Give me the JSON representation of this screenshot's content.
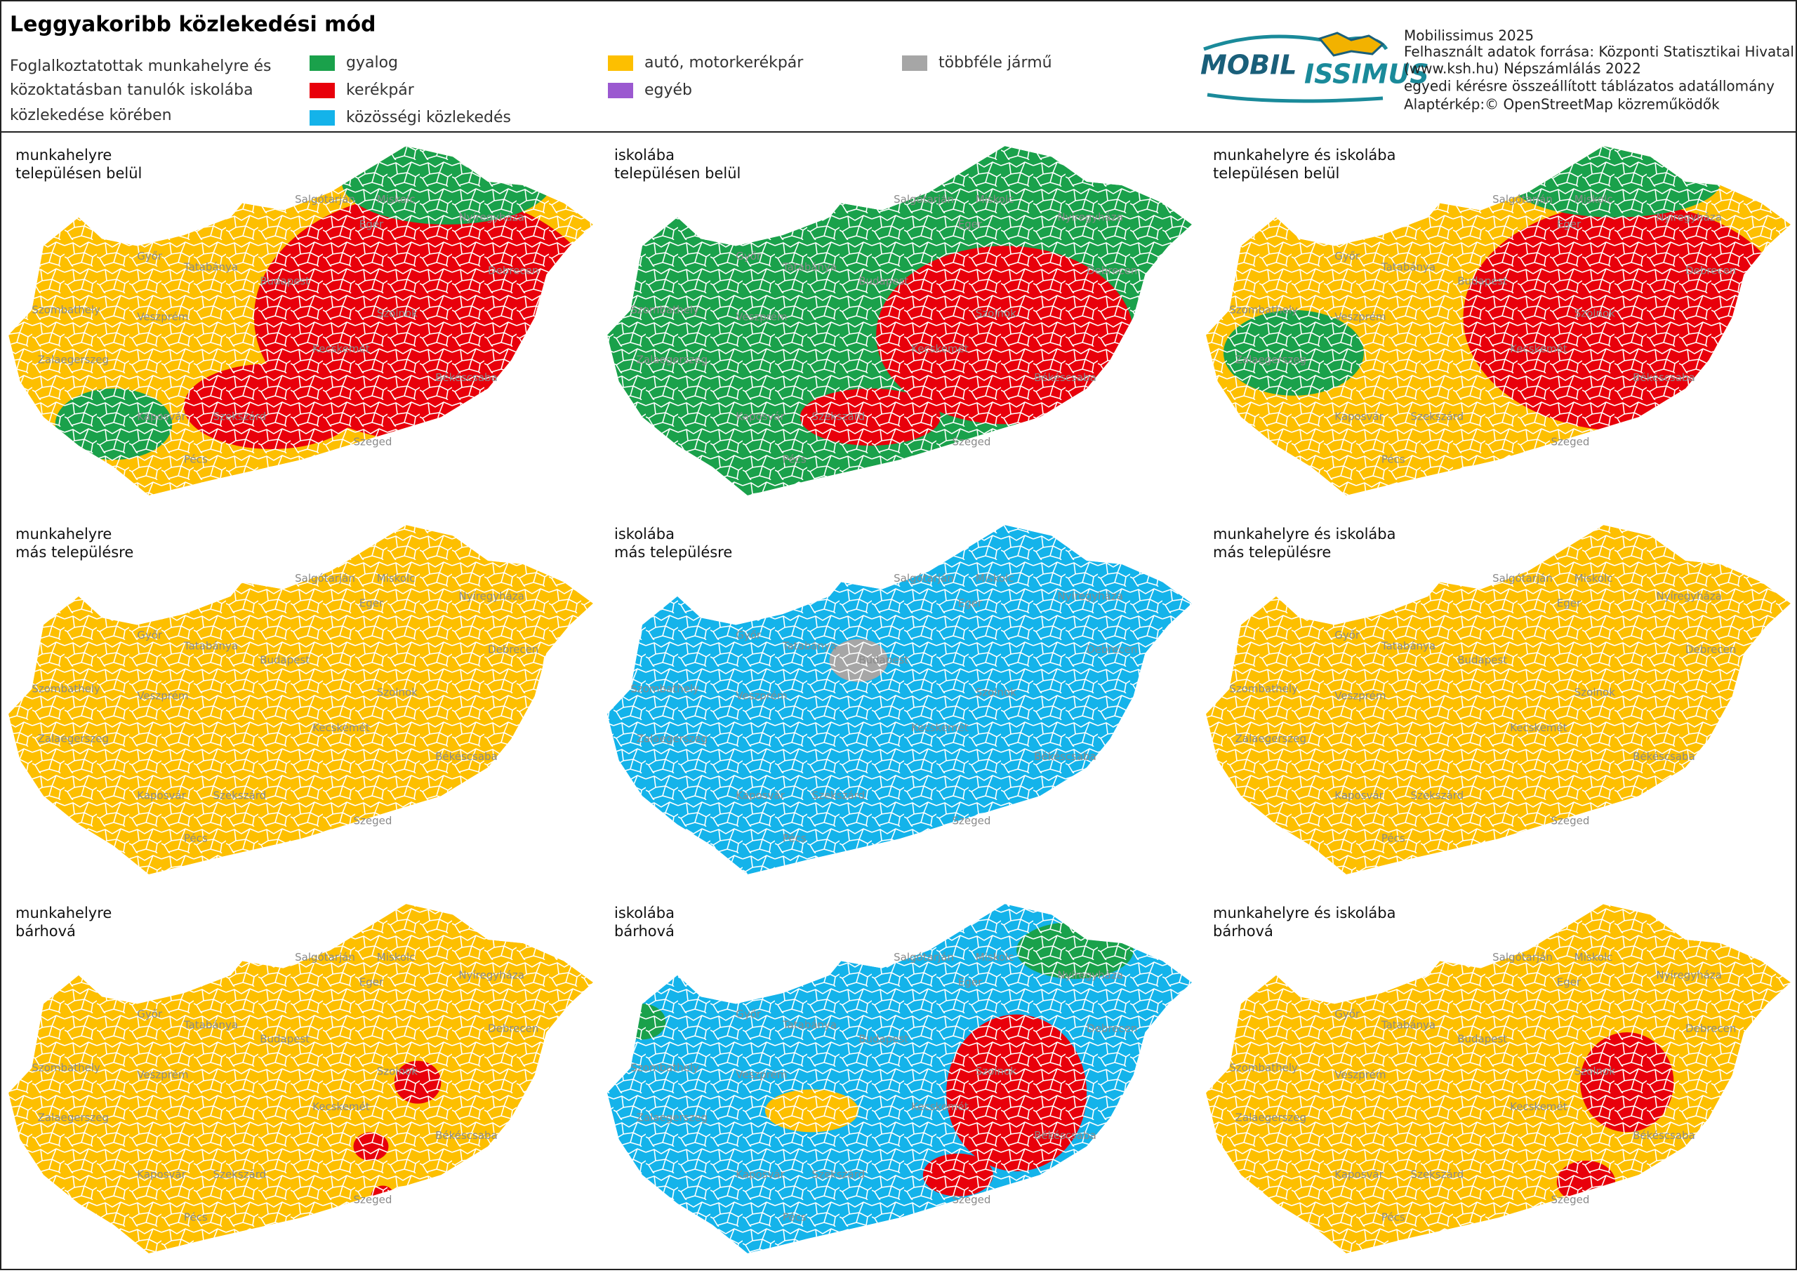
{
  "header": {
    "title": "Leggyakoribb közlekedési mód",
    "subtitle": [
      "Foglalkoztatottak munkahelyre és",
      "közoktatásban tanulók iskolába",
      "közlekedése körében"
    ]
  },
  "legend": [
    {
      "label": "gyalog",
      "color": "#1aa14b"
    },
    {
      "label": "kerékpár",
      "color": "#e8000b"
    },
    {
      "label": "közösségi közlekedés",
      "color": "#14b3ea"
    },
    {
      "label": "autó, motorkerékpár",
      "color": "#fdbf00"
    },
    {
      "label": "egyéb",
      "color": "#9b59d0"
    },
    {
      "label": "többféle jármű",
      "color": "#a6a6a6"
    }
  ],
  "logo": {
    "left": "MOBIL",
    "right": "ISSIMUS"
  },
  "source": [
    "Mobilissimus 2025",
    "Felhasznált adatok forrása: Központi Statisztikai Hivatal",
    "(www.ksh.hu) Népszámlálás 2022",
    "egyedi kérésre összeállított táblázatos adatállomány",
    "Alaptérkép:© OpenStreetMap közreműködők"
  ],
  "cities": [
    "Salgótarján",
    "Miskolc",
    "Nyíregyháza",
    "Eger",
    "Győr",
    "Tatabánya",
    "Budapest",
    "Debrecen",
    "Szombathely",
    "Veszprém",
    "Szolnok",
    "Zalaegerszeg",
    "Kecskemét",
    "Békéscsaba",
    "Kaposvár",
    "Szekszárd",
    "Szeged",
    "Pécs"
  ],
  "panels": [
    {
      "label": [
        "munkahelyre",
        "településen belül"
      ],
      "colors": [
        "#fdbf00",
        "#e8000b",
        "#1aa14b"
      ]
    },
    {
      "label": [
        "iskolába",
        "településen belül"
      ],
      "colors": [
        "#1aa14b",
        "#e8000b"
      ]
    },
    {
      "label": [
        "munkahelyre és iskolába",
        "településen belül"
      ],
      "colors": [
        "#fdbf00",
        "#e8000b",
        "#1aa14b"
      ]
    },
    {
      "label": [
        "munkahelyre",
        "más településre"
      ],
      "colors": [
        "#fdbf00"
      ]
    },
    {
      "label": [
        "iskolába",
        "más településre"
      ],
      "colors": [
        "#14b3ea",
        "#a6a6a6"
      ]
    },
    {
      "label": [
        "munkahelyre és iskolába",
        "más településre"
      ],
      "colors": [
        "#fdbf00"
      ]
    },
    {
      "label": [
        "munkahelyre",
        "bárhová"
      ],
      "colors": [
        "#fdbf00",
        "#e8000b"
      ]
    },
    {
      "label": [
        "iskolába",
        "bárhová"
      ],
      "colors": [
        "#14b3ea",
        "#e8000b",
        "#1aa14b",
        "#fdbf00"
      ]
    },
    {
      "label": [
        "munkahelyre és iskolába",
        "bárhová"
      ],
      "colors": [
        "#fdbf00",
        "#e8000b"
      ]
    }
  ]
}
